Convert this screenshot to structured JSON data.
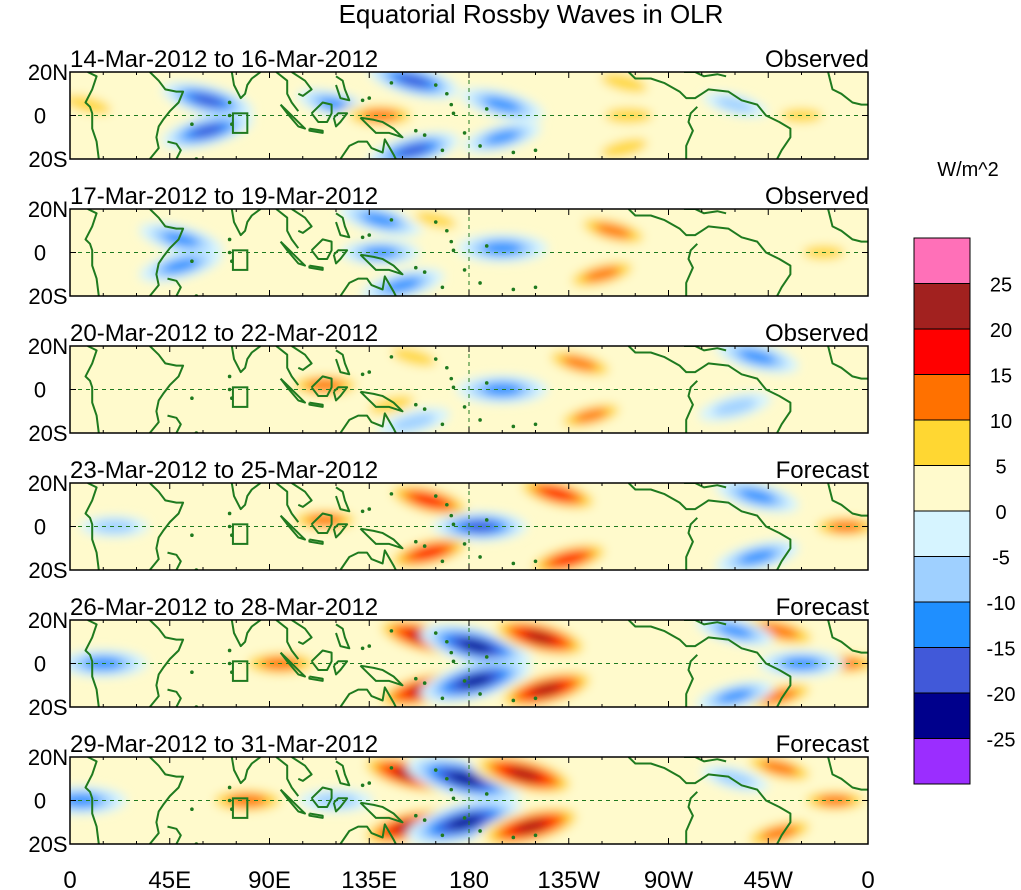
{
  "chart_data": {
    "type": "heatmap",
    "title": "Equatorial Rossby Waves in OLR",
    "units": "W/m^2",
    "xlabel": "",
    "ylabel": "",
    "x_range_deg_east": [
      0,
      360
    ],
    "y_range_deg": [
      -20,
      20
    ],
    "x_tick_labels": [
      "0",
      "45E",
      "90E",
      "135E",
      "180",
      "135W",
      "90W",
      "45W",
      "0"
    ],
    "x_tick_values_deg_east": [
      0,
      45,
      90,
      135,
      180,
      225,
      270,
      315,
      360
    ],
    "y_tick_labels": [
      "20N",
      "0",
      "20S"
    ],
    "y_tick_values_deg": [
      20,
      0,
      -20
    ],
    "colorbar": {
      "boundaries": [
        -25,
        -20,
        -15,
        -10,
        -5,
        0,
        5,
        10,
        15,
        20,
        25
      ],
      "labels": [
        "25",
        "20",
        "15",
        "10",
        "5",
        "0",
        "-5",
        "-10",
        "-15",
        "-20",
        "-25"
      ],
      "colors": [
        "#9b2dff",
        "#00008c",
        "#4159d9",
        "#1f8fff",
        "#9fd0ff",
        "#d6f4ff",
        "#fffacc",
        "#ffd732",
        "#ff7100",
        "#ff0000",
        "#a2211f",
        "#ff70b8"
      ]
    },
    "panels": [
      {
        "dates": "14-Mar-2012 to 16-Mar-2012",
        "status": "Observed",
        "features": [
          {
            "lon": 62,
            "lat": 7,
            "value": -15
          },
          {
            "lon": 62,
            "lat": -7,
            "value": -15
          },
          {
            "lon": 120,
            "lat": 5,
            "value": -10
          },
          {
            "lon": 140,
            "lat": 0,
            "value": 12
          },
          {
            "lon": 155,
            "lat": 16,
            "value": -15
          },
          {
            "lon": 155,
            "lat": -16,
            "value": -15
          },
          {
            "lon": 195,
            "lat": 5,
            "value": -12
          },
          {
            "lon": 195,
            "lat": -10,
            "value": -10
          },
          {
            "lon": 250,
            "lat": 15,
            "value": 9
          },
          {
            "lon": 252,
            "lat": 0,
            "value": 9
          },
          {
            "lon": 250,
            "lat": -15,
            "value": 9
          },
          {
            "lon": 8,
            "lat": 5,
            "value": 9
          },
          {
            "lon": 330,
            "lat": 0,
            "value": 6
          },
          {
            "lon": 300,
            "lat": 5,
            "value": -5
          }
        ]
      },
      {
        "dates": "17-Mar-2012 to 19-Mar-2012",
        "status": "Observed",
        "features": [
          {
            "lon": 50,
            "lat": 6,
            "value": -12
          },
          {
            "lon": 50,
            "lat": -6,
            "value": -12
          },
          {
            "lon": 140,
            "lat": 15,
            "value": -12
          },
          {
            "lon": 140,
            "lat": 0,
            "value": -10
          },
          {
            "lon": 150,
            "lat": -15,
            "value": -12
          },
          {
            "lon": 195,
            "lat": 2,
            "value": -14
          },
          {
            "lon": 245,
            "lat": 10,
            "value": 12
          },
          {
            "lon": 240,
            "lat": -10,
            "value": 12
          },
          {
            "lon": 165,
            "lat": 15,
            "value": 6
          },
          {
            "lon": 340,
            "lat": 0,
            "value": 6
          }
        ]
      },
      {
        "dates": "20-Mar-2012 to 22-Mar-2012",
        "status": "Observed",
        "features": [
          {
            "lon": 115,
            "lat": 2,
            "value": 12
          },
          {
            "lon": 145,
            "lat": -7,
            "value": 8
          },
          {
            "lon": 155,
            "lat": 15,
            "value": 8
          },
          {
            "lon": 195,
            "lat": 0,
            "value": -14
          },
          {
            "lon": 230,
            "lat": 12,
            "value": 11
          },
          {
            "lon": 235,
            "lat": -12,
            "value": 10
          },
          {
            "lon": 310,
            "lat": 15,
            "value": -12
          },
          {
            "lon": 300,
            "lat": -8,
            "value": -8
          },
          {
            "lon": 155,
            "lat": -15,
            "value": -8
          }
        ]
      },
      {
        "dates": "23-Mar-2012 to 25-Mar-2012",
        "status": "Forecast",
        "features": [
          {
            "lon": 162,
            "lat": 12,
            "value": 16
          },
          {
            "lon": 162,
            "lat": -12,
            "value": 16
          },
          {
            "lon": 185,
            "lat": 0,
            "value": -15
          },
          {
            "lon": 220,
            "lat": 15,
            "value": 15
          },
          {
            "lon": 225,
            "lat": -15,
            "value": 15
          },
          {
            "lon": 115,
            "lat": 3,
            "value": 11
          },
          {
            "lon": 310,
            "lat": 14,
            "value": -12
          },
          {
            "lon": 310,
            "lat": -14,
            "value": -12
          },
          {
            "lon": 350,
            "lat": 0,
            "value": 10
          },
          {
            "lon": 20,
            "lat": 0,
            "value": -6
          }
        ]
      },
      {
        "dates": "26-Mar-2012 to 28-Mar-2012",
        "status": "Forecast",
        "features": [
          {
            "lon": 160,
            "lat": 12,
            "value": 20
          },
          {
            "lon": 160,
            "lat": -12,
            "value": 20
          },
          {
            "lon": 183,
            "lat": 8,
            "value": -22
          },
          {
            "lon": 183,
            "lat": -8,
            "value": -22
          },
          {
            "lon": 212,
            "lat": 12,
            "value": 20
          },
          {
            "lon": 215,
            "lat": -12,
            "value": 20
          },
          {
            "lon": 95,
            "lat": 0,
            "value": 14
          },
          {
            "lon": 15,
            "lat": 0,
            "value": -13
          },
          {
            "lon": 320,
            "lat": 15,
            "value": 14
          },
          {
            "lon": 320,
            "lat": -15,
            "value": 12
          },
          {
            "lon": 350,
            "lat": 0,
            "value": 10
          },
          {
            "lon": 300,
            "lat": 15,
            "value": -10
          },
          {
            "lon": 300,
            "lat": -15,
            "value": -10
          },
          {
            "lon": 330,
            "lat": 0,
            "value": -12
          }
        ]
      },
      {
        "dates": "29-Mar-2012 to 31-Mar-2012",
        "status": "Forecast",
        "features": [
          {
            "lon": 153,
            "lat": 12,
            "value": 20
          },
          {
            "lon": 153,
            "lat": -12,
            "value": 20
          },
          {
            "lon": 178,
            "lat": 10,
            "value": -24
          },
          {
            "lon": 178,
            "lat": -10,
            "value": -24
          },
          {
            "lon": 205,
            "lat": 12,
            "value": 22
          },
          {
            "lon": 208,
            "lat": -12,
            "value": 22
          },
          {
            "lon": 80,
            "lat": 0,
            "value": 14
          },
          {
            "lon": 5,
            "lat": 0,
            "value": -14
          },
          {
            "lon": 120,
            "lat": 0,
            "value": -8
          },
          {
            "lon": 320,
            "lat": 15,
            "value": 12
          },
          {
            "lon": 320,
            "lat": -15,
            "value": 12
          },
          {
            "lon": 345,
            "lat": 0,
            "value": 10
          },
          {
            "lon": 300,
            "lat": 10,
            "value": -6
          }
        ]
      }
    ]
  }
}
